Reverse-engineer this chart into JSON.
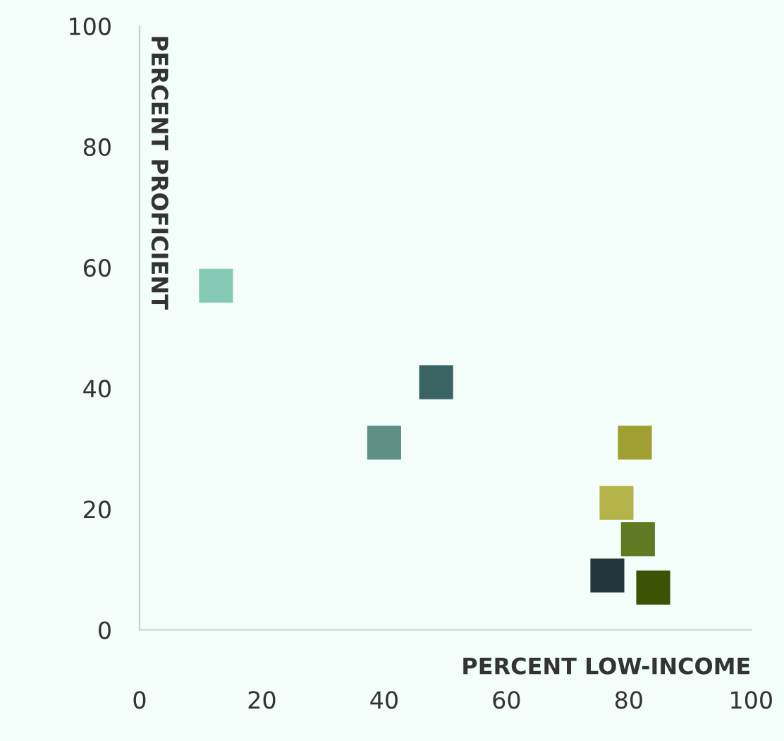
{
  "chart_data": {
    "type": "scatter",
    "xlabel": "PERCENT LOW-INCOME",
    "ylabel": "PERCENT PROFICIENT",
    "x": [
      12.5,
      40,
      48.5,
      81,
      78,
      81.5,
      76.5,
      84
    ],
    "values": [
      57,
      31,
      41,
      31,
      21,
      15,
      9,
      7
    ],
    "colors": [
      "#86c9b5",
      "#5e9088",
      "#3a6462",
      "#a0a032",
      "#b4b44a",
      "#5e7a22",
      "#23363a",
      "#3b5306"
    ],
    "marker": "square",
    "xlim": [
      0,
      100
    ],
    "ylim": [
      0,
      100
    ],
    "xticks": [
      0,
      20,
      40,
      60,
      80,
      100
    ],
    "yticks": [
      0,
      20,
      40,
      60,
      80,
      100
    ],
    "grid": false,
    "legend": false
  }
}
